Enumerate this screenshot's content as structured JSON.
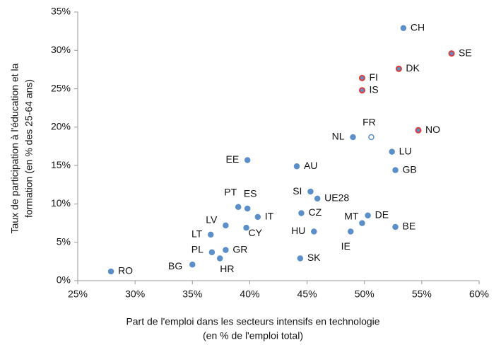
{
  "chart_data": {
    "type": "scatter",
    "xlabel": [
      "Part de l'emploi dans les secteurs intensifs en technologie",
      "(en % de l'emploi total)"
    ],
    "ylabel": [
      "Taux de participation à l'éducation et la",
      "formation (en % des 25-64 ans)"
    ],
    "labels": [
      "RO",
      "BG",
      "PL",
      "GR",
      "HR",
      "LT",
      "LV",
      "CY",
      "IT",
      "PT",
      "ES",
      "EE",
      "AU",
      "SI",
      "UE28",
      "CZ",
      "HU",
      "SK",
      "NL",
      "FR",
      "FI",
      "IS",
      "IE",
      "MT",
      "DE",
      "BE",
      "LU",
      "GB",
      "CH",
      "DK",
      "SE",
      "NO"
    ],
    "x": [
      27.9,
      35.0,
      36.7,
      37.9,
      37.4,
      36.6,
      37.9,
      39.7,
      40.7,
      39.0,
      39.8,
      39.8,
      44.1,
      45.3,
      45.9,
      44.5,
      45.6,
      44.4,
      49.0,
      50.6,
      49.8,
      49.8,
      48.8,
      49.8,
      50.3,
      52.7,
      52.4,
      52.7,
      53.4,
      53.0,
      57.6,
      54.7
    ],
    "y": [
      1.2,
      2.1,
      3.7,
      4.0,
      2.9,
      6.0,
      7.2,
      6.9,
      8.3,
      9.6,
      9.4,
      15.7,
      14.9,
      11.6,
      10.7,
      8.8,
      6.4,
      2.9,
      18.7,
      18.7,
      26.4,
      24.8,
      6.4,
      7.5,
      8.5,
      7.0,
      16.8,
      14.4,
      32.9,
      27.6,
      29.6,
      19.6
    ],
    "color": "#5b8fc9",
    "edgecolors": [
      "#5b8fc9",
      "#5b8fc9",
      "#5b8fc9",
      "#5b8fc9",
      "#5b8fc9",
      "#5b8fc9",
      "#5b8fc9",
      "#5b8fc9",
      "#5b8fc9",
      "#5b8fc9",
      "#5b8fc9",
      "#5b8fc9",
      "#5b8fc9",
      "#5b8fc9",
      "#5b8fc9",
      "#5b8fc9",
      "#5b8fc9",
      "#5b8fc9",
      "#5b8fc9",
      "#5b8fc9",
      "#e03a3a",
      "#e03a3a",
      "#5b8fc9",
      "#5b8fc9",
      "#5b8fc9",
      "#5b8fc9",
      "#5b8fc9",
      "#5b8fc9",
      "#5b8fc9",
      "#e03a3a",
      "#e03a3a",
      "#e03a3a"
    ],
    "hollow": [
      "FR"
    ],
    "xlim": [
      25,
      60
    ],
    "xticks": [
      {
        "value": 25,
        "label": "25%"
      },
      {
        "value": 30,
        "label": "30%"
      },
      {
        "value": 35,
        "label": "35%"
      },
      {
        "value": 40,
        "label": "40%"
      },
      {
        "value": 45,
        "label": "45%"
      },
      {
        "value": 50,
        "label": "50%"
      },
      {
        "value": 55,
        "label": "55%"
      },
      {
        "value": 60,
        "label": "60%"
      }
    ],
    "ylim": [
      0,
      35
    ],
    "yticks": [
      {
        "value": 0,
        "label": "0%"
      },
      {
        "value": 5,
        "label": "5%"
      },
      {
        "value": 10,
        "label": "10%"
      },
      {
        "value": 15,
        "label": "15%"
      },
      {
        "value": 20,
        "label": "20%"
      },
      {
        "value": 25,
        "label": "25%"
      },
      {
        "value": 30,
        "label": "30%"
      },
      {
        "value": 35,
        "label": "35%"
      }
    ],
    "grid": false
  }
}
